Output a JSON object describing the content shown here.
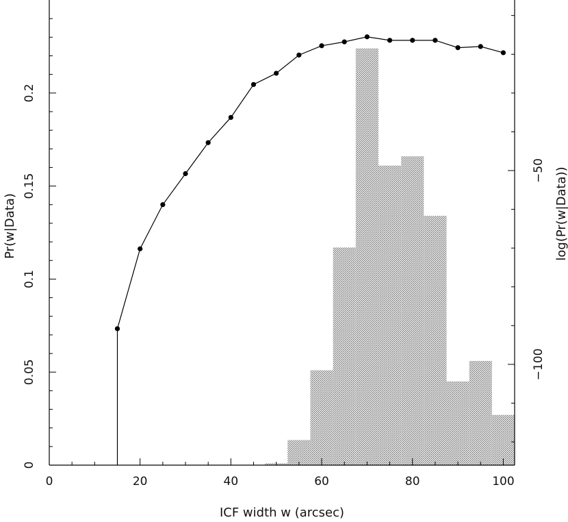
{
  "chart_data": {
    "type": "bar+line",
    "xlabel": "ICF width w (arcsec)",
    "ylabel_left": "Pr(w|Data)",
    "ylabel_right": "log(Pr(w|Data))",
    "xlim": [
      0,
      102.5
    ],
    "ylim_left": [
      0,
      0.25
    ],
    "ylim_right": [
      -126,
      -6
    ],
    "x_ticks": [
      0,
      20,
      40,
      60,
      80,
      100
    ],
    "y_left_ticks": [
      0,
      0.05,
      0.1,
      0.15,
      0.2
    ],
    "y_left_tick_labels": [
      "0",
      "0.05",
      "0.1",
      "0.15",
      "0.2"
    ],
    "y_right_ticks": [
      -50,
      -100
    ],
    "y_right_tick_labels": [
      "−50",
      "−100"
    ],
    "histogram": {
      "name": "Pr(w|Data)",
      "axis": "left",
      "bin_width": 5,
      "bin_centers": [
        50,
        55,
        60,
        65,
        70,
        75,
        80,
        85,
        90,
        95,
        100
      ],
      "values": [
        0.001,
        0.0135,
        0.051,
        0.117,
        0.224,
        0.161,
        0.166,
        0.134,
        0.045,
        0.056,
        0.027
      ]
    },
    "log_curve": {
      "name": "log(Pr(w|Data))",
      "axis": "right",
      "x": [
        15,
        20,
        25,
        30,
        35,
        40,
        45,
        50,
        55,
        60,
        65,
        70,
        75,
        80,
        85,
        90,
        95,
        100
      ],
      "y": [
        -90.8,
        -70.2,
        -58.8,
        -50.8,
        -42.8,
        -36.3,
        -27.8,
        -24.9,
        -20.2,
        -17.8,
        -16.8,
        -15.5,
        -16.4,
        -16.4,
        -16.4,
        -18.3,
        -18.0,
        -19.6
      ]
    }
  }
}
